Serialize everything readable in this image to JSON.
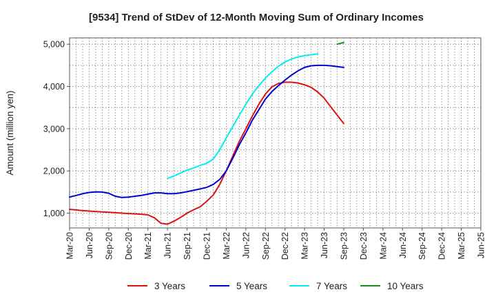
{
  "chart_data": {
    "type": "line",
    "title": "[9534]  Trend of StDev of 12-Month Moving Sum of Ordinary Incomes",
    "xlabel": "",
    "ylabel": "Amount (million yen)",
    "x_tick_labels": [
      "Mar-20",
      "Jun-20",
      "Sep-20",
      "Dec-20",
      "Mar-21",
      "Jun-21",
      "Sep-21",
      "Dec-21",
      "Mar-22",
      "Jun-22",
      "Sep-22",
      "Dec-22",
      "Mar-23",
      "Jun-23",
      "Sep-23",
      "Dec-23",
      "Mar-24",
      "Jun-24",
      "Sep-24",
      "Dec-24",
      "Mar-25",
      "Jun-25"
    ],
    "y_ticks": [
      1000,
      2000,
      3000,
      4000,
      5000
    ],
    "y_tick_labels": [
      "1,000",
      "2,000",
      "3,000",
      "4,000",
      "5,000"
    ],
    "ylim": [
      650,
      5150
    ],
    "grid": true,
    "legend_position": "bottom",
    "series": [
      {
        "name": "3 Years",
        "color": "#dd1111",
        "x_start_index": 0,
        "values": [
          1090,
          1075,
          1060,
          1050,
          1040,
          1030,
          1020,
          1010,
          1000,
          990,
          985,
          975,
          960,
          890,
          760,
          740,
          810,
          900,
          1000,
          1080,
          1150,
          1280,
          1430,
          1680,
          2000,
          2350,
          2700,
          3000,
          3300,
          3580,
          3820,
          3990,
          4070,
          4100,
          4100,
          4080,
          4040,
          3980,
          3870,
          3720,
          3520,
          3320,
          3120
        ]
      },
      {
        "name": "5 Years",
        "color": "#0000cc",
        "x_start_index": 0,
        "values": [
          1380,
          1420,
          1460,
          1490,
          1505,
          1500,
          1470,
          1400,
          1370,
          1380,
          1400,
          1420,
          1450,
          1480,
          1480,
          1460,
          1460,
          1480,
          1510,
          1540,
          1575,
          1610,
          1680,
          1800,
          2000,
          2300,
          2620,
          2900,
          3200,
          3450,
          3700,
          3880,
          4020,
          4150,
          4270,
          4370,
          4450,
          4490,
          4500,
          4500,
          4490,
          4470,
          4450
        ]
      },
      {
        "name": "7 Years",
        "color": "#00eeee",
        "x_start_index": 15,
        "values": [
          1820,
          1880,
          1950,
          2020,
          2070,
          2130,
          2180,
          2280,
          2500,
          2780,
          3050,
          3320,
          3580,
          3820,
          4020,
          4200,
          4350,
          4480,
          4580,
          4650,
          4700,
          4730,
          4750,
          4770
        ]
      },
      {
        "name": "10 Years",
        "color": "#228822",
        "x_start_index": 41,
        "values": [
          5000,
          5040
        ]
      }
    ]
  }
}
